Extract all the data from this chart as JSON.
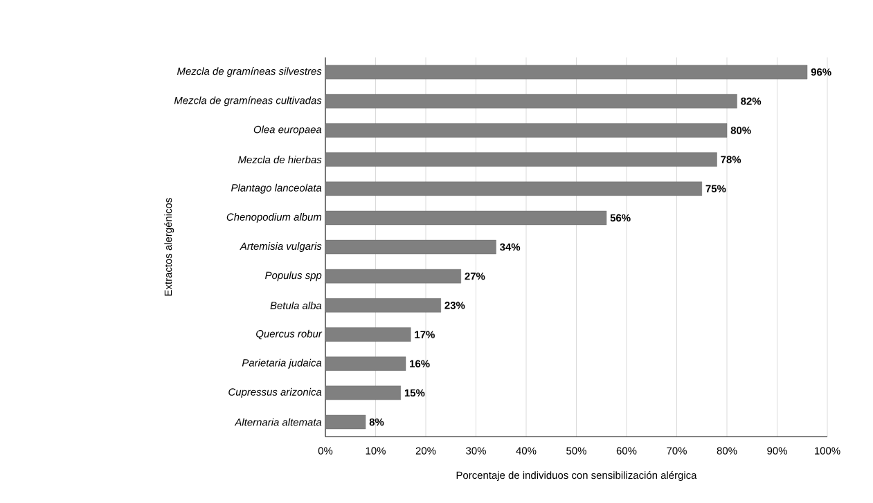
{
  "chart_data": {
    "type": "bar",
    "orientation": "horizontal",
    "categories": [
      "Mezcla de gramíneas silvestres",
      "Mezcla de gramíneas cultivadas",
      "Olea europaea",
      "Mezcla de hierbas",
      "Plantago lanceolata",
      "Chenopodium album",
      "Artemisia vulgaris",
      "Populus spp",
      "Betula alba",
      "Quercus robur",
      "Parietaria judaica",
      "Cupressus arizonica",
      "Alternaria altemata"
    ],
    "values": [
      96,
      82,
      80,
      78,
      75,
      56,
      34,
      27,
      23,
      17,
      16,
      15,
      8
    ],
    "value_labels": [
      "96%",
      "82%",
      "80%",
      "78%",
      "75%",
      "56%",
      "34%",
      "27%",
      "23%",
      "17%",
      "16%",
      "15%",
      "8%"
    ],
    "color": "#808080",
    "xlabel": "Porcentaje de individuos con sensibilización alérgica",
    "ylabel": "Extractos alergénicos",
    "xlim": [
      0,
      100
    ],
    "xticks": [
      {
        "value": 0,
        "label": "0%"
      },
      {
        "value": 10,
        "label": "10%"
      },
      {
        "value": 20,
        "label": "20%"
      },
      {
        "value": 30,
        "label": "30%"
      },
      {
        "value": 40,
        "label": "40%"
      },
      {
        "value": 50,
        "label": "50%"
      },
      {
        "value": 60,
        "label": "60%"
      },
      {
        "value": 70,
        "label": "70%"
      },
      {
        "value": 80,
        "label": "80%"
      },
      {
        "value": 90,
        "label": "90%"
      },
      {
        "value": 100,
        "label": "100%"
      }
    ],
    "grid": "x"
  }
}
